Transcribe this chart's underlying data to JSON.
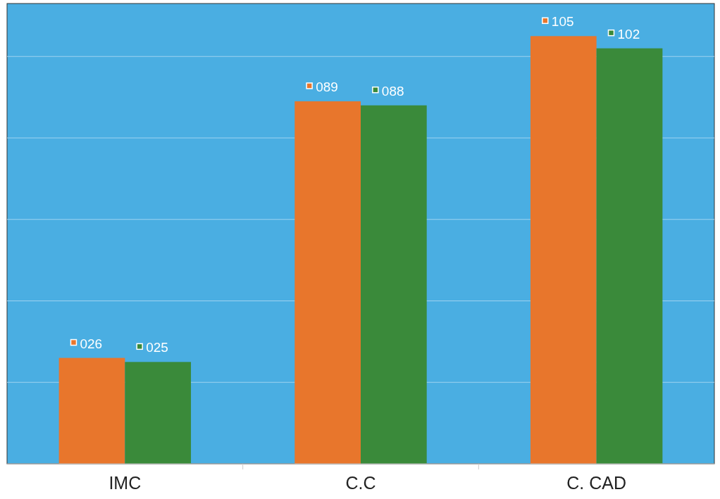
{
  "chart_data": {
    "type": "bar",
    "categories": [
      "IMC",
      "C.C",
      "C. CAD"
    ],
    "series": [
      {
        "color": "#e8762c",
        "values": [
          26,
          89,
          105
        ],
        "value_labels": [
          "026",
          "089",
          "105"
        ]
      },
      {
        "color": "#3a8a3a",
        "values": [
          25,
          88,
          102
        ],
        "value_labels": [
          "025",
          "088",
          "102"
        ]
      }
    ],
    "ylim": [
      0,
      113
    ],
    "yticks": [
      {
        "value": 20,
        "label": null
      },
      {
        "value": 40,
        "label": null
      },
      {
        "value": 60,
        "label": null
      },
      {
        "value": 80,
        "label": null
      },
      {
        "value": 100,
        "label": null
      }
    ],
    "grid": "y",
    "tick_labels": "x"
  }
}
